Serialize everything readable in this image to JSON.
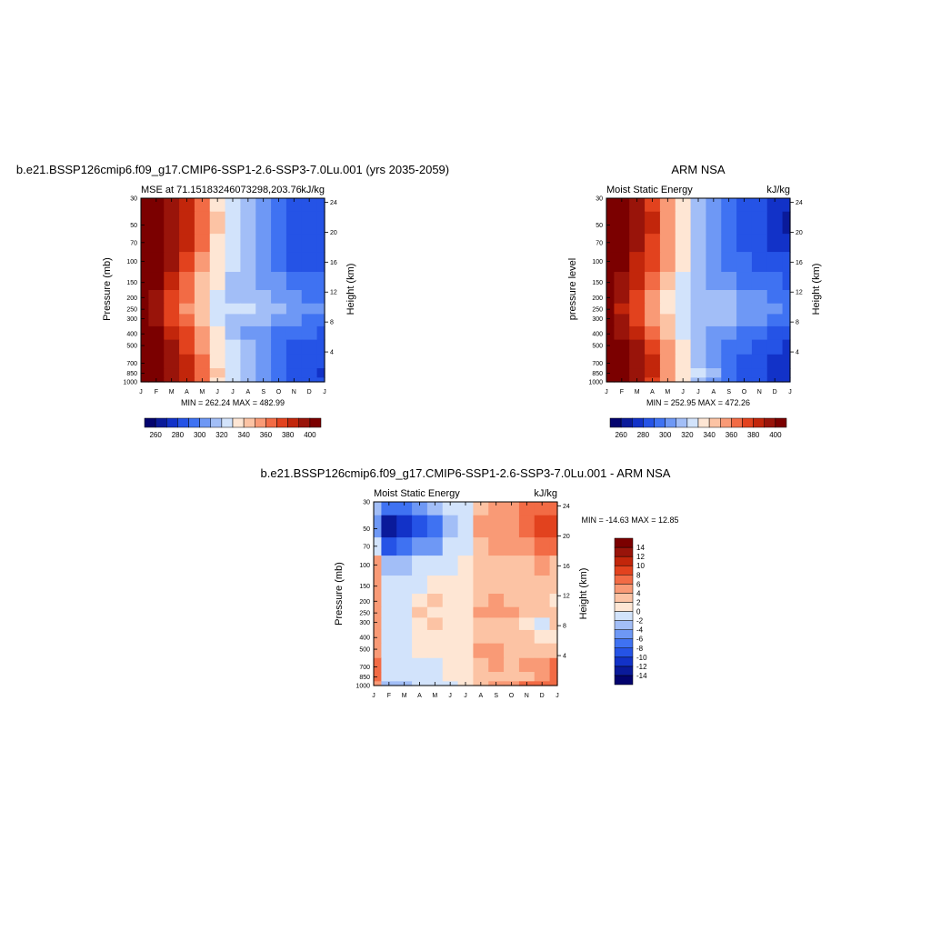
{
  "figure": {
    "top_left": {
      "main_title": "b.e21.BSSP126cmip6.f09_g17.CMIP6-SSP1-2.6-SSP3-7.0Lu.001 (yrs 2035-2059)",
      "left_string": "MSE at 71.15183246073298,203.76",
      "right_string": "kJ/kg",
      "ylabel": "Pressure (mb)",
      "ylabel_right": "Height (km)",
      "minmax": "MIN = 262.24 MAX = 482.99"
    },
    "top_right": {
      "main_title": "ARM NSA",
      "left_string": "Moist Static Energy",
      "right_string": "kJ/kg",
      "ylabel": "pressure level",
      "ylabel_right": "Height (km)",
      "minmax": "MIN = 252.95 MAX = 472.26"
    },
    "bottom": {
      "main_title": "b.e21.BSSP126cmip6.f09_g17.CMIP6-SSP1-2.6-SSP3-7.0Lu.001 - ARM NSA",
      "left_string": "Moist Static Energy",
      "right_string": "kJ/kg",
      "ylabel": "Pressure (mb)",
      "ylabel_right": "Height (km)",
      "minmax": "MIN = -14.63 MAX =  12.85"
    }
  },
  "chart_data": [
    {
      "id": "model-mse",
      "type": "heatmap",
      "x_categories": [
        "J",
        "F",
        "M",
        "A",
        "M",
        "J",
        "J",
        "A",
        "S",
        "O",
        "N",
        "D",
        "J"
      ],
      "y_ticks_pressure": [
        30,
        50,
        70,
        100,
        150,
        200,
        250,
        300,
        400,
        500,
        700,
        850,
        1000
      ],
      "y_ticks_height": [
        24,
        20,
        16,
        12,
        8,
        4
      ],
      "levels": [
        260,
        270,
        280,
        290,
        300,
        310,
        320,
        330,
        340,
        350,
        360,
        370,
        380,
        390,
        400
      ],
      "colorbar_labels": [
        "260",
        "280",
        "300",
        "320",
        "340",
        "360",
        "380",
        "400"
      ],
      "colorbar_colors": [
        "#03036e",
        "#0a1a9a",
        "#1232c8",
        "#2553e6",
        "#3f72f2",
        "#6e98f5",
        "#a2bef7",
        "#d2e3fb",
        "#fee6d4",
        "#fcc3a4",
        "#f99a76",
        "#f26b45",
        "#e2421e",
        "#c2260b",
        "#99140a",
        "#7b0000"
      ],
      "profile_months": [
        "J",
        "F",
        "M",
        "A",
        "M",
        "J",
        "J",
        "A",
        "S",
        "O",
        "N",
        "D",
        "J"
      ],
      "profile_pressure": [
        30,
        50,
        70,
        100,
        150,
        200,
        250,
        300,
        400,
        500,
        700,
        850,
        1000
      ],
      "z": [
        [
          440,
          410,
          397,
          382,
          360,
          338,
          322,
          312,
          300,
          292,
          287,
          282,
          280
        ],
        [
          440,
          412,
          399,
          384,
          362,
          340,
          323,
          313,
          301,
          294,
          288,
          283,
          281
        ],
        [
          440,
          410,
          397,
          382,
          361,
          338,
          322,
          312,
          301,
          293,
          287,
          282,
          280
        ],
        [
          440,
          405,
          391,
          376,
          357,
          336,
          321,
          311,
          301,
          293,
          289,
          287,
          284
        ],
        [
          440,
          400,
          384,
          368,
          349,
          331,
          318,
          310,
          305,
          300,
          295,
          292,
          290
        ],
        [
          440,
          393,
          376,
          360,
          342,
          328,
          318,
          316,
          312,
          307,
          302,
          298,
          296
        ],
        [
          440,
          392,
          373,
          356,
          340,
          327,
          320,
          320,
          316,
          311,
          307,
          303,
          300
        ],
        [
          440,
          394,
          377,
          360,
          343,
          329,
          318,
          315,
          312,
          307,
          302,
          298,
          296
        ],
        [
          440,
          401,
          386,
          370,
          350,
          332,
          318,
          309,
          303,
          298,
          294,
          291,
          288
        ],
        [
          440,
          407,
          393,
          378,
          358,
          336,
          321,
          310,
          301,
          294,
          288,
          285,
          283
        ],
        [
          440,
          411,
          398,
          383,
          361,
          338,
          322,
          312,
          300,
          292,
          286,
          282,
          280
        ],
        [
          440,
          413,
          399,
          384,
          362,
          340,
          323,
          313,
          300,
          291,
          285,
          281,
          279
        ],
        [
          440,
          410,
          397,
          382,
          360,
          338,
          322,
          312,
          300,
          292,
          287,
          282,
          280
        ]
      ],
      "min": 262.24,
      "max": 482.99
    },
    {
      "id": "obs-mse",
      "type": "heatmap",
      "x_categories": [
        "J",
        "F",
        "M",
        "A",
        "M",
        "J",
        "J",
        "A",
        "S",
        "O",
        "N",
        "D",
        "J"
      ],
      "y_ticks_pressure": [
        30,
        50,
        70,
        100,
        150,
        200,
        250,
        300,
        400,
        500,
        700,
        850,
        1000
      ],
      "y_ticks_height": [
        24,
        20,
        16,
        12,
        8,
        4
      ],
      "levels": [
        260,
        270,
        280,
        290,
        300,
        310,
        320,
        330,
        340,
        350,
        360,
        370,
        380,
        390,
        400
      ],
      "colorbar_labels": [
        "260",
        "280",
        "300",
        "320",
        "340",
        "360",
        "380",
        "400"
      ],
      "profile_months": [
        "J",
        "F",
        "M",
        "A",
        "M",
        "J",
        "J",
        "A",
        "S",
        "O",
        "N",
        "D",
        "J"
      ],
      "profile_pressure": [
        30,
        50,
        70,
        100,
        150,
        200,
        250,
        300,
        400,
        500,
        700,
        850,
        1000
      ],
      "z": [
        [
          440,
          408,
          394,
          378,
          356,
          334,
          318,
          308,
          296,
          288,
          280,
          274,
          270
        ],
        [
          440,
          410,
          396,
          380,
          358,
          336,
          319,
          309,
          296,
          288,
          280,
          273,
          268
        ],
        [
          440,
          408,
          394,
          379,
          357,
          335,
          318,
          308,
          296,
          289,
          281,
          276,
          272
        ],
        [
          440,
          403,
          389,
          373,
          353,
          333,
          318,
          308,
          298,
          291,
          286,
          283,
          280
        ],
        [
          440,
          398,
          382,
          365,
          346,
          328,
          316,
          308,
          303,
          298,
          293,
          290,
          288
        ],
        [
          440,
          391,
          374,
          357,
          339,
          325,
          316,
          313,
          310,
          305,
          301,
          297,
          295
        ],
        [
          440,
          389,
          371,
          353,
          337,
          324,
          318,
          318,
          314,
          309,
          305,
          301,
          298
        ],
        [
          440,
          392,
          375,
          357,
          340,
          326,
          316,
          313,
          310,
          305,
          300,
          296,
          294
        ],
        [
          440,
          399,
          383,
          367,
          347,
          329,
          316,
          307,
          301,
          296,
          291,
          288,
          285
        ],
        [
          440,
          405,
          391,
          375,
          355,
          333,
          318,
          308,
          298,
          291,
          285,
          281,
          278
        ],
        [
          440,
          409,
          395,
          380,
          358,
          335,
          319,
          309,
          297,
          289,
          282,
          277,
          273
        ],
        [
          440,
          411,
          397,
          381,
          359,
          337,
          320,
          310,
          297,
          288,
          280,
          274,
          270
        ],
        [
          440,
          408,
          394,
          378,
          356,
          334,
          318,
          308,
          296,
          288,
          280,
          274,
          270
        ]
      ],
      "min": 252.95,
      "max": 472.26
    },
    {
      "id": "diff-mse",
      "type": "heatmap",
      "x_categories": [
        "J",
        "F",
        "M",
        "A",
        "M",
        "J",
        "J",
        "A",
        "S",
        "O",
        "N",
        "D",
        "J"
      ],
      "y_ticks_pressure": [
        30,
        50,
        70,
        100,
        150,
        200,
        250,
        300,
        400,
        500,
        700,
        850,
        1000
      ],
      "y_ticks_height": [
        24,
        20,
        16,
        12,
        8,
        4
      ],
      "levels": [
        -14,
        -12,
        -10,
        -8,
        -6,
        -4,
        -2,
        0,
        2,
        4,
        6,
        8,
        10,
        12,
        14
      ],
      "colorbar_labels": [
        "14",
        "12",
        "10",
        "8",
        "6",
        "4",
        "2",
        "0",
        "-2",
        "-4",
        "-6",
        "-8",
        "-10",
        "-12",
        "-14"
      ],
      "colorbar_colors": [
        "#03036e",
        "#0a1a9a",
        "#1232c8",
        "#2553e6",
        "#3f72f2",
        "#6e98f5",
        "#a2bef7",
        "#d2e3fb",
        "#fee6d4",
        "#fcc3a4",
        "#f99a76",
        "#f26b45",
        "#e2421e",
        "#c2260b",
        "#99140a",
        "#7b0000"
      ],
      "profile_months": [
        "J",
        "F",
        "M",
        "A",
        "M",
        "J",
        "J",
        "A",
        "S",
        "O",
        "N",
        "D",
        "J"
      ],
      "profile_pressure": [
        30,
        50,
        70,
        100,
        150,
        200,
        250,
        300,
        400,
        500,
        700,
        850,
        1000
      ],
      "z": [
        [
          -3,
          -8,
          -7,
          -5,
          -4,
          -2,
          -1,
          3,
          4,
          5,
          6,
          7,
          7
        ],
        [
          -5,
          -13,
          -11,
          -9,
          -8,
          -3,
          -2,
          4,
          5,
          5,
          6,
          8,
          9
        ],
        [
          -2,
          -9,
          -8,
          -6,
          -5,
          -2,
          -1,
          3,
          4,
          4,
          5,
          6,
          7
        ],
        [
          4,
          -3,
          -3,
          -2,
          -1,
          -1,
          0,
          3,
          3,
          3,
          3,
          4,
          3
        ],
        [
          5,
          -2,
          -1,
          -1,
          1,
          0,
          0,
          3,
          3,
          3,
          2,
          2,
          2
        ],
        [
          4,
          -1,
          -1,
          1,
          2,
          1,
          1,
          3,
          4,
          3,
          3,
          2,
          1
        ],
        [
          5,
          -1,
          -1,
          2,
          1,
          1,
          1,
          5,
          4,
          4,
          3,
          2,
          2
        ],
        [
          5,
          -1,
          -1,
          1,
          3,
          1,
          1,
          3,
          3,
          3,
          1,
          -1,
          2
        ],
        [
          5,
          -1,
          -1,
          1,
          0,
          1,
          1,
          3,
          3,
          2,
          2,
          1,
          1
        ],
        [
          5,
          -1,
          -1,
          0,
          0,
          1,
          0,
          4,
          4,
          3,
          3,
          2,
          3
        ],
        [
          6,
          -1,
          -2,
          -2,
          -1,
          1,
          1,
          3,
          4,
          3,
          4,
          5,
          6
        ],
        [
          6,
          -2,
          -1,
          -1,
          -1,
          0,
          0,
          2,
          2,
          3,
          3,
          5,
          6
        ],
        [
          4,
          -3,
          -3,
          -2,
          -1,
          -1,
          0,
          3,
          4,
          5,
          6,
          7,
          7
        ]
      ],
      "min": -14.63,
      "max": 12.85
    }
  ]
}
